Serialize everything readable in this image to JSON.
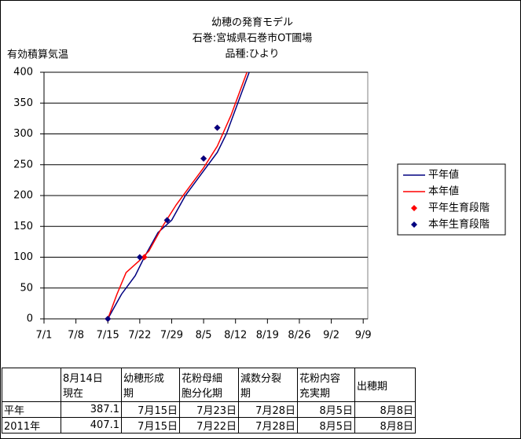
{
  "chart_data": {
    "type": "line",
    "title": [
      "幼穂の発育モデル",
      "石巻:宮城県石巻市OT圃場",
      "品種:ひより"
    ],
    "y_label": "有効積算気温",
    "xlim": [
      0,
      71
    ],
    "xticks": [
      {
        "value": 0,
        "label": "7/1"
      },
      {
        "value": 7,
        "label": "7/8"
      },
      {
        "value": 14,
        "label": "7/15"
      },
      {
        "value": 21,
        "label": "7/22"
      },
      {
        "value": 28,
        "label": "7/29"
      },
      {
        "value": 35,
        "label": "8/5"
      },
      {
        "value": 42,
        "label": "8/12"
      },
      {
        "value": 49,
        "label": "8/19"
      },
      {
        "value": 56,
        "label": "8/26"
      },
      {
        "value": 63,
        "label": "9/2"
      },
      {
        "value": 70,
        "label": "9/9"
      }
    ],
    "ylim": [
      0,
      400
    ],
    "yticks": [
      0,
      50,
      100,
      150,
      200,
      250,
      300,
      350,
      400
    ],
    "grid": true,
    "legend": "right",
    "series": [
      {
        "name": "平年値",
        "color": "#000080",
        "kind": "line",
        "x": [
          14,
          17,
          20,
          22,
          25,
          28,
          31,
          35,
          38,
          40,
          43,
          45
        ],
        "values": [
          0,
          40,
          70,
          100,
          140,
          160,
          200,
          240,
          270,
          300,
          360,
          400
        ]
      },
      {
        "name": "本年値",
        "color": "#ff0000",
        "kind": "line",
        "x": [
          14,
          16,
          18,
          21,
          23,
          26,
          29,
          32,
          35,
          38,
          41,
          43,
          44.5
        ],
        "values": [
          0,
          40,
          75,
          95,
          110,
          150,
          185,
          215,
          245,
          280,
          330,
          370,
          400
        ]
      },
      {
        "name": "平年生育段階",
        "color": "#ff0000",
        "kind": "points",
        "x": [
          14,
          22,
          27,
          35,
          38
        ],
        "values": [
          0,
          100,
          160,
          260,
          310
        ]
      },
      {
        "name": "本年生育段階",
        "color": "#000080",
        "kind": "points",
        "x": [
          14,
          21,
          27,
          35,
          38
        ],
        "values": [
          0,
          100,
          160,
          260,
          310
        ]
      }
    ]
  },
  "table": {
    "header": [
      [],
      [
        "8月14日",
        "現在"
      ],
      [
        "幼穂形成",
        "期"
      ],
      [
        "花粉母細",
        "胞分化期"
      ],
      [
        "減数分裂",
        "期"
      ],
      [
        "花粉内容",
        "充実期"
      ],
      [
        "出穂期"
      ]
    ],
    "rows": [
      [
        "平年",
        "387.1",
        "7月15日",
        "7月23日",
        "7月28日",
        "8月5日",
        "8月8日"
      ],
      [
        "2011年",
        "407.1",
        "7月15日",
        "7月22日",
        "7月28日",
        "8月5日",
        "8月8日"
      ]
    ]
  }
}
